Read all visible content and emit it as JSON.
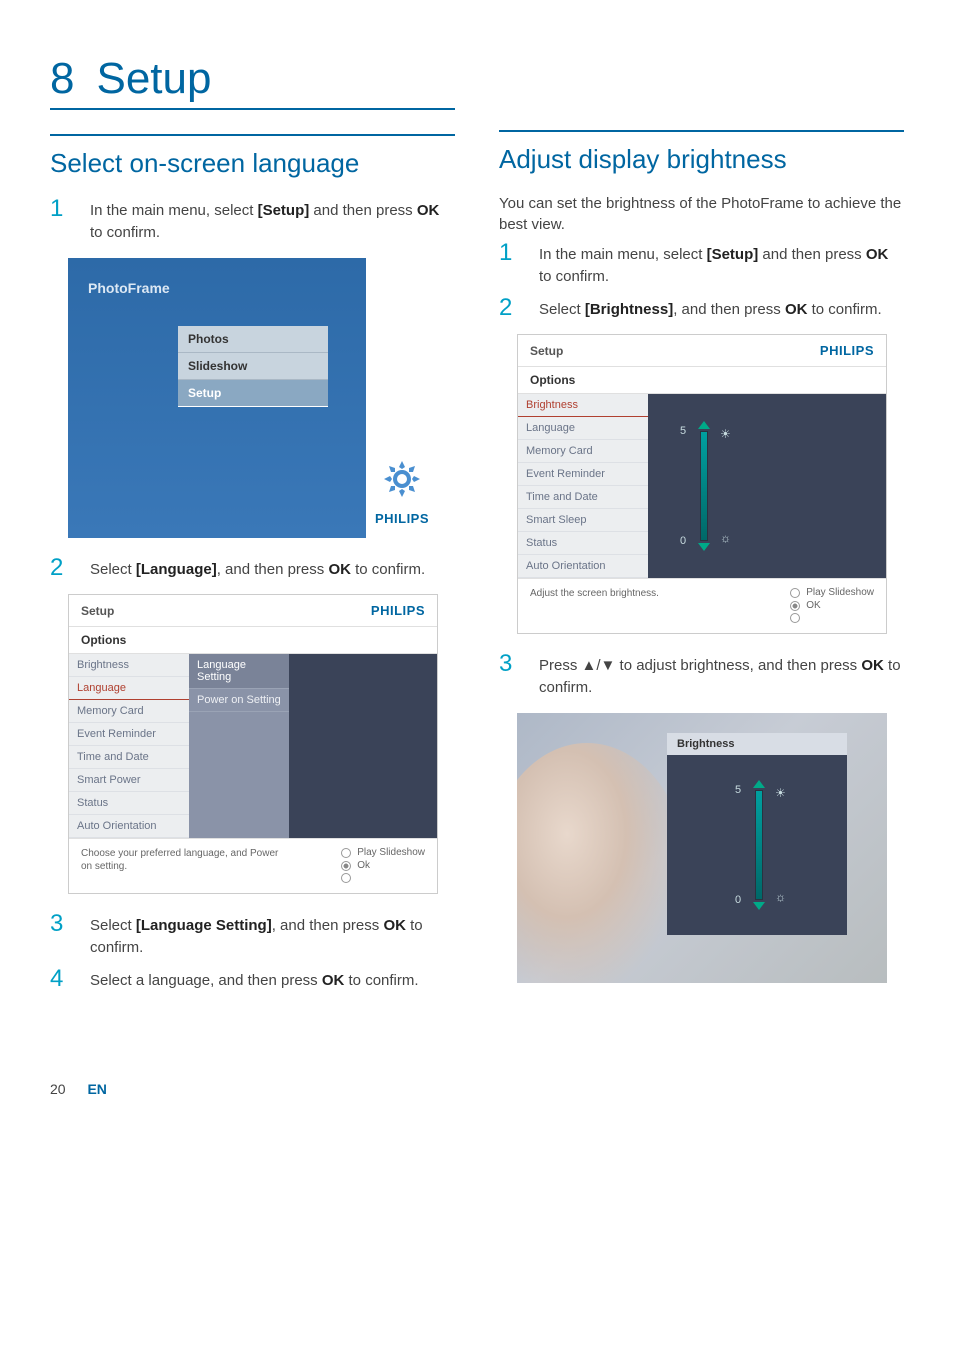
{
  "chapter": {
    "number": "8",
    "title": "Setup"
  },
  "left": {
    "section_title": "Select on-screen language",
    "steps": [
      {
        "num": "1",
        "html": "In the main menu, select <b>[Setup]</b> and then press <b>OK</b> to confirm."
      },
      {
        "num": "2",
        "html": "Select <b>[Language]</b>, and then press <b>OK</b> to confirm."
      },
      {
        "num": "3",
        "html": "Select <b>[Language Setting]</b>, and then press <b>OK</b> to confirm."
      },
      {
        "num": "4",
        "html": "Select a language, and then press <b>OK</b> to confirm."
      }
    ],
    "pf_screenshot": {
      "title": "PhotoFrame",
      "menu": [
        "Photos",
        "Slideshow",
        "Setup"
      ],
      "selected": "Setup",
      "logo": "PHILIPS"
    },
    "lang_screenshot": {
      "header": "Setup",
      "logo": "PHILIPS",
      "options_label": "Options",
      "sidebar": [
        "Brightness",
        "Language",
        "Memory Card",
        "Event Reminder",
        "Time and Date",
        "Smart Power",
        "Status",
        "Auto Orientation"
      ],
      "selected": "Language",
      "sub_items": [
        "Language Setting",
        "Power on Setting"
      ],
      "sub_selected": "Language Setting",
      "footer_hint": "Choose your preferred language, and Power on setting.",
      "footer_right": {
        "play": "Play Slideshow",
        "ok": "Ok"
      }
    }
  },
  "right": {
    "section_title": "Adjust display brightness",
    "intro": "You can set the brightness of the PhotoFrame to achieve the best view.",
    "steps": [
      {
        "num": "1",
        "html": "In the main menu, select <b>[Setup]</b> and then press <b>OK</b> to confirm."
      },
      {
        "num": "2",
        "html": "Select <b>[Brightness]</b>, and then press <b>OK</b> to confirm."
      },
      {
        "num": "3",
        "html": "Press ▲/▼ to adjust brightness, and then press <b>OK</b> to confirm."
      }
    ],
    "bright_screenshot": {
      "header": "Setup",
      "logo": "PHILIPS",
      "options_label": "Options",
      "sidebar": [
        "Brightness",
        "Language",
        "Memory Card",
        "Event Reminder",
        "Time and Date",
        "Smart Sleep",
        "Status",
        "Auto Orientation"
      ],
      "selected": "Brightness",
      "slider": {
        "max": "5",
        "min": "0"
      },
      "footer_hint": "Adjust the screen brightness.",
      "footer_right": {
        "play": "Play Slideshow",
        "ok": "OK"
      }
    },
    "photo_overlay": {
      "title": "Brightness",
      "slider": {
        "max": "5",
        "min": "0"
      }
    }
  },
  "footer": {
    "page": "20",
    "lang": "EN"
  },
  "colors": {
    "brand_blue": "#0066a1",
    "accent_cyan": "#00a0c6",
    "panel_dark": "#3a4358",
    "sidebar_bg": "#eceef0",
    "sidebar_text": "#6a7488",
    "selected_red": "#b04030"
  }
}
